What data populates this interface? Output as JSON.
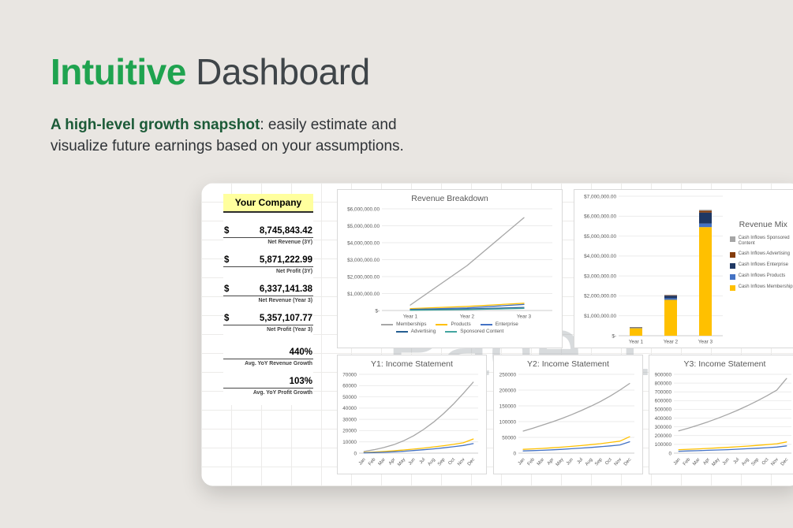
{
  "header": {
    "title_accent": "Intuitive",
    "title_rest": " Dashboard",
    "subtitle_bold": "A high-level growth snapshot",
    "subtitle_rest": ": easily estimate and visualize future earnings based on your assumptions."
  },
  "watermark": "Page 1",
  "metrics": {
    "header": "Your Company",
    "items": [
      {
        "prefix": "$",
        "value": "8,745,843.42",
        "label": "Net Revenue (3Y)"
      },
      {
        "prefix": "$",
        "value": "5,871,222.99",
        "label": "Net Profit (3Y)"
      },
      {
        "prefix": "$",
        "value": "6,337,141.38",
        "label": "Net Revenue (Year 3)"
      },
      {
        "prefix": "$",
        "value": "5,357,107.77",
        "label": "Net Profit (Year 3)"
      },
      {
        "prefix": "",
        "value": "440%",
        "label": "Avg. YoY Revenue Growth"
      },
      {
        "prefix": "",
        "value": "103%",
        "label": "Avg. YoY Profit Growth"
      }
    ]
  },
  "chart_data": [
    {
      "type": "line",
      "title": "Revenue Breakdown",
      "categories": [
        "Year 1",
        "Year 2",
        "Year 3"
      ],
      "series": [
        {
          "name": "Memberships",
          "color": "#a6a6a6",
          "values": [
            320000,
            2650000,
            5480000
          ]
        },
        {
          "name": "Products",
          "color": "#ffc000",
          "values": [
            110000,
            240000,
            430000
          ]
        },
        {
          "name": "Enterprise",
          "color": "#4472c4",
          "values": [
            60000,
            150000,
            360000
          ]
        },
        {
          "name": "Advertising",
          "color": "#255e91",
          "values": [
            35000,
            90000,
            180000
          ]
        },
        {
          "name": "Sponsored Content",
          "color": "#43a5a0",
          "values": [
            15000,
            50000,
            120000
          ]
        }
      ],
      "ylim": [
        0,
        6000000
      ],
      "yticks": [
        {
          "v": 0,
          "label": "$-"
        },
        {
          "v": 1000000,
          "label": "$1,000,000.00"
        },
        {
          "v": 2000000,
          "label": "$2,000,000.00"
        },
        {
          "v": 3000000,
          "label": "$3,000,000.00"
        },
        {
          "v": 4000000,
          "label": "$4,000,000.00"
        },
        {
          "v": 5000000,
          "label": "$5,000,000.00"
        },
        {
          "v": 6000000,
          "label": "$6,000,000.00"
        }
      ],
      "x_rotate": false,
      "grid": true,
      "legend_position": "bottom",
      "legend_rows": [
        [
          0,
          1,
          2
        ],
        [
          3,
          4
        ]
      ]
    },
    {
      "type": "stacked-bar",
      "title": "Revenue Mix",
      "categories": [
        "Year 1",
        "Year 2",
        "Year 3"
      ],
      "series": [
        {
          "name": "Cash Inflows Memberships",
          "color": "#ffc000",
          "values": [
            380000,
            1800000,
            5450000
          ]
        },
        {
          "name": "Cash Inflows Products",
          "color": "#4472c4",
          "values": [
            25000,
            80000,
            180000
          ]
        },
        {
          "name": "Cash Inflows Enterprise",
          "color": "#1f3864",
          "values": [
            15000,
            130000,
            550000
          ]
        },
        {
          "name": "Cash Inflows Advertising",
          "color": "#843c0c",
          "values": [
            8000,
            25000,
            90000
          ]
        },
        {
          "name": "Cash Inflows Sponsored Content",
          "color": "#a6a6a6",
          "values": [
            5000,
            15000,
            50000
          ]
        }
      ],
      "ylim": [
        0,
        7000000
      ],
      "yticks": [
        {
          "v": 0,
          "label": "$-"
        },
        {
          "v": 1000000,
          "label": "$1,000,000.00"
        },
        {
          "v": 2000000,
          "label": "$2,000,000.00"
        },
        {
          "v": 3000000,
          "label": "$3,000,000.00"
        },
        {
          "v": 4000000,
          "label": "$4,000,000.00"
        },
        {
          "v": 5000000,
          "label": "$5,000,000.00"
        },
        {
          "v": 6000000,
          "label": "$6,000,000.00"
        },
        {
          "v": 7000000,
          "label": "$7,000,000.00"
        }
      ],
      "x_rotate": false,
      "grid": true,
      "legend_position": "right",
      "legend_order": [
        4,
        3,
        2,
        1,
        0
      ]
    },
    {
      "type": "line",
      "title": "Y1: Income Statement",
      "categories": [
        "Jan",
        "Feb",
        "Mar",
        "Apr",
        "May",
        "Jun",
        "Jul",
        "Aug",
        "Sep",
        "Oct",
        "Nov",
        "Dec"
      ],
      "series": [
        {
          "name": "gray-line",
          "color": "#a6a6a6",
          "values": [
            1500,
            3000,
            5000,
            7500,
            11000,
            15500,
            21000,
            27500,
            35000,
            43500,
            53000,
            63000
          ]
        },
        {
          "name": "yellow-line",
          "color": "#ffc000",
          "values": [
            600,
            1000,
            1500,
            2100,
            2800,
            3600,
            4500,
            5500,
            6600,
            7800,
            9200,
            12500
          ]
        },
        {
          "name": "blue-line",
          "color": "#4472c4",
          "values": [
            300,
            500,
            800,
            1200,
            1700,
            2300,
            3000,
            3800,
            4700,
            5700,
            6800,
            8500
          ]
        }
      ],
      "ylim": [
        0,
        70000
      ],
      "yticks": [
        {
          "v": 0,
          "label": "0"
        },
        {
          "v": 10000,
          "label": "10000"
        },
        {
          "v": 20000,
          "label": "20000"
        },
        {
          "v": 30000,
          "label": "30000"
        },
        {
          "v": 40000,
          "label": "40000"
        },
        {
          "v": 50000,
          "label": "50000"
        },
        {
          "v": 60000,
          "label": "60000"
        },
        {
          "v": 70000,
          "label": "70000"
        }
      ],
      "x_rotate": true,
      "grid": true,
      "legend_position": "none"
    },
    {
      "type": "line",
      "title": "Y2: Income Statement",
      "categories": [
        "Jan",
        "Feb",
        "Mar",
        "Apr",
        "May",
        "Jun",
        "Jul",
        "Aug",
        "Sep",
        "Oct",
        "Nov",
        "Dec"
      ],
      "series": [
        {
          "name": "gray-line",
          "color": "#a6a6a6",
          "values": [
            70000,
            79000,
            89000,
            99000,
            110000,
            122000,
            135000,
            149000,
            164000,
            181000,
            200000,
            221000
          ]
        },
        {
          "name": "yellow-line",
          "color": "#ffc000",
          "values": [
            12000,
            13500,
            15000,
            17000,
            19000,
            21500,
            24000,
            27000,
            30000,
            34000,
            38000,
            52000
          ]
        },
        {
          "name": "blue-line",
          "color": "#4472c4",
          "values": [
            7000,
            8000,
            9000,
            10500,
            12000,
            14000,
            16000,
            18000,
            20500,
            23000,
            26000,
            36000
          ]
        }
      ],
      "ylim": [
        0,
        250000
      ],
      "yticks": [
        {
          "v": 0,
          "label": "0"
        },
        {
          "v": 50000,
          "label": "50000"
        },
        {
          "v": 100000,
          "label": "100000"
        },
        {
          "v": 150000,
          "label": "150000"
        },
        {
          "v": 200000,
          "label": "200000"
        },
        {
          "v": 250000,
          "label": "250000"
        }
      ],
      "x_rotate": true,
      "grid": true,
      "legend_position": "none"
    },
    {
      "type": "line",
      "title": "Y3: Income Statement",
      "categories": [
        "Jan",
        "Feb",
        "Mar",
        "Apr",
        "May",
        "Jun",
        "Jul",
        "Aug",
        "Sep",
        "Oct",
        "Nov",
        "Dec"
      ],
      "series": [
        {
          "name": "gray-line",
          "color": "#a6a6a6",
          "values": [
            255000,
            285000,
            320000,
            358000,
            399000,
            443000,
            490000,
            541000,
            596000,
            655000,
            719000,
            852000
          ]
        },
        {
          "name": "yellow-line",
          "color": "#ffc000",
          "values": [
            40000,
            44000,
            49000,
            54000,
            60000,
            66000,
            73000,
            80000,
            88000,
            97000,
            107000,
            128000
          ]
        },
        {
          "name": "blue-line",
          "color": "#4472c4",
          "values": [
            22000,
            25000,
            28000,
            32000,
            36000,
            40000,
            45000,
            50000,
            56000,
            62000,
            69000,
            83000
          ]
        }
      ],
      "ylim": [
        0,
        900000
      ],
      "yticks": [
        {
          "v": 0,
          "label": "0"
        },
        {
          "v": 100000,
          "label": "100000"
        },
        {
          "v": 200000,
          "label": "200000"
        },
        {
          "v": 300000,
          "label": "300000"
        },
        {
          "v": 400000,
          "label": "400000"
        },
        {
          "v": 500000,
          "label": "500000"
        },
        {
          "v": 600000,
          "label": "600000"
        },
        {
          "v": 700000,
          "label": "700000"
        },
        {
          "v": 800000,
          "label": "800000"
        },
        {
          "v": 900000,
          "label": "900000"
        }
      ],
      "x_rotate": true,
      "grid": true,
      "legend_position": "none"
    }
  ]
}
